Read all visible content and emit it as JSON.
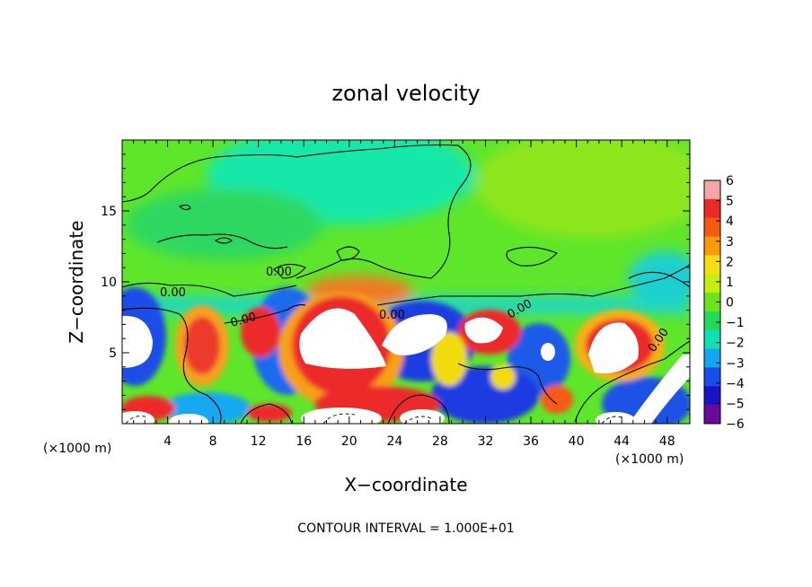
{
  "chart_data": {
    "type": "heatmap",
    "title": "zonal velocity",
    "xlabel": "X−coordinate",
    "ylabel": "Z−coordinate",
    "x_unit_label_left": "(×1000 m)",
    "x_unit_label_right": "(×1000 m)",
    "xlim": [
      0,
      50
    ],
    "ylim": [
      0,
      20
    ],
    "x_ticks": [
      4,
      8,
      12,
      16,
      20,
      24,
      28,
      32,
      36,
      40,
      44,
      48
    ],
    "y_ticks": [
      5,
      10,
      15
    ],
    "colorbar": {
      "range": [
        -6,
        6
      ],
      "ticks": [
        "6",
        "5",
        "4",
        "3",
        "2",
        "1",
        "0",
        "−1",
        "−2",
        "−3",
        "−4",
        "−5",
        "−6"
      ],
      "colors": [
        "#f4a6a6",
        "#ec2a2a",
        "#f65a12",
        "#fa9a0a",
        "#f6dc10",
        "#c6ec10",
        "#6ce41c",
        "#24d858",
        "#10e0b4",
        "#12a8f0",
        "#1a4ee6",
        "#1a14c4",
        "#6a0a9a"
      ]
    },
    "contour_labels": [
      "0.00",
      "0.00",
      "0.00",
      "0.00",
      "0.00",
      "0.00"
    ],
    "footer": "CONTOUR INTERVAL = 1.000E+01"
  }
}
